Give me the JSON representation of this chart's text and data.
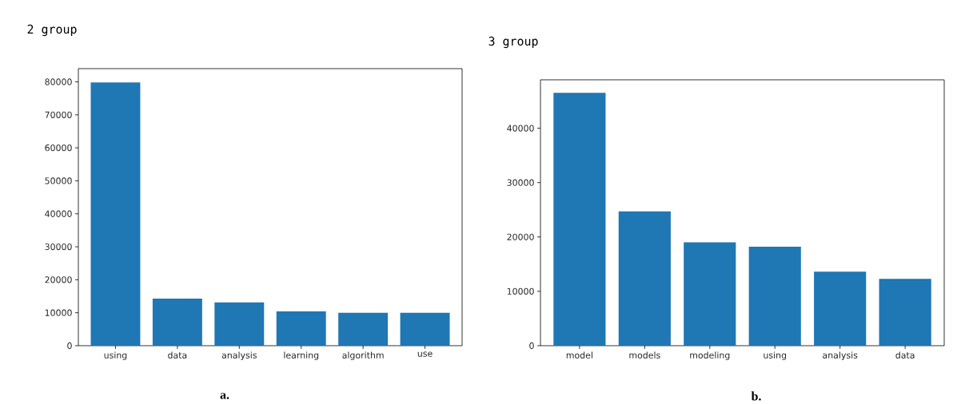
{
  "chart_data": [
    {
      "type": "bar",
      "title": "2 group",
      "categories": [
        "using",
        "data",
        "analysis",
        "learning",
        "algorithm",
        "use"
      ],
      "values": [
        79800,
        14300,
        13100,
        10400,
        10000,
        10000
      ],
      "color": "#1f77b4",
      "ylim": [
        0,
        84000
      ],
      "yticks": [
        0,
        10000,
        20000,
        30000,
        40000,
        50000,
        60000,
        70000,
        80000
      ],
      "annotations": [
        "a."
      ]
    },
    {
      "type": "bar",
      "title": "3 group",
      "categories": [
        "model",
        "models",
        "modeling",
        "using",
        "analysis",
        "data"
      ],
      "values": [
        46500,
        24700,
        19000,
        18200,
        13600,
        12300
      ],
      "color": "#1f77b4",
      "ylim": [
        0,
        48900
      ],
      "yticks": [
        0,
        10000,
        20000,
        30000,
        40000
      ],
      "annotations": [
        "b."
      ]
    }
  ]
}
